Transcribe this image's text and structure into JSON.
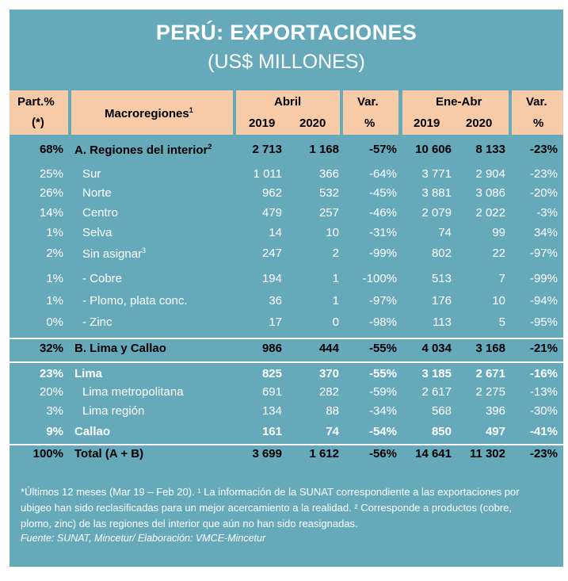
{
  "title": "PERÚ: EXPORTACIONES",
  "subtitle": "(US$ MILLONES)",
  "header": {
    "part_line1": "Part.%",
    "part_line2": "(*)",
    "macro": "Macroregiones",
    "macro_sup": "1",
    "abril": "Abril",
    "ene_abr": "Ene-Abr",
    "var": "Var.",
    "pct": "%",
    "y2019": "2019",
    "y2020": "2020"
  },
  "rows": [
    {
      "part": "68%",
      "name": "A. Regiones del interior",
      "sup": "2",
      "a2019": "2 713",
      "a2020": "1 168",
      "avar": "-57%",
      "e2019": "10 606",
      "e2020": "8 133",
      "evar": "-23%",
      "style": "bold-black"
    },
    {
      "part": "25%",
      "name": "Sur",
      "sup": "",
      "a2019": "1 011",
      "a2020": "366",
      "avar": "-64%",
      "e2019": "3 771",
      "e2020": "2 904",
      "evar": "-23%",
      "style": "white"
    },
    {
      "part": "26%",
      "name": "Norte",
      "sup": "",
      "a2019": "962",
      "a2020": "532",
      "avar": "-45%",
      "e2019": "3 881",
      "e2020": "3 086",
      "evar": "-20%",
      "style": "white"
    },
    {
      "part": "14%",
      "name": "Centro",
      "sup": "",
      "a2019": "479",
      "a2020": "257",
      "avar": "-46%",
      "e2019": "2 079",
      "e2020": "2 022",
      "evar": "-3%",
      "style": "white"
    },
    {
      "part": "1%",
      "name": "Selva",
      "sup": "",
      "a2019": "14",
      "a2020": "10",
      "avar": "-31%",
      "e2019": "74",
      "e2020": "99",
      "evar": "34%",
      "style": "white"
    },
    {
      "part": "2%",
      "name": "Sin asignar",
      "sup": "3",
      "a2019": "247",
      "a2020": "2",
      "avar": "-99%",
      "e2019": "802",
      "e2020": "22",
      "evar": "-97%",
      "style": "white"
    },
    {
      "part": "1%",
      "name": "- Cobre",
      "sup": "",
      "a2019": "194",
      "a2020": "1",
      "avar": "-100%",
      "e2019": "513",
      "e2020": "7",
      "evar": "-99%",
      "style": "white"
    },
    {
      "part": "1%",
      "name": "- Plomo, plata conc.",
      "sup": "",
      "a2019": "36",
      "a2020": "1",
      "avar": "-97%",
      "e2019": "176",
      "e2020": "10",
      "evar": "-94%",
      "style": "white"
    },
    {
      "part": "0%",
      "name": "- Zinc",
      "sup": "",
      "a2019": "17",
      "a2020": "0",
      "avar": "-98%",
      "e2019": "113",
      "e2020": "5",
      "evar": "-95%",
      "style": "white"
    },
    {
      "part": "32%",
      "name": "B. Lima y Callao",
      "sup": "",
      "a2019": "986",
      "a2020": "444",
      "avar": "-55%",
      "e2019": "4 034",
      "e2020": "3 168",
      "evar": "-21%",
      "style": "bold-black"
    },
    {
      "part": "23%",
      "name": "Lima",
      "sup": "",
      "a2019": "825",
      "a2020": "370",
      "avar": "-55%",
      "e2019": "3 185",
      "e2020": "2 671",
      "evar": "-16%",
      "style": "bold-white"
    },
    {
      "part": "20%",
      "name": "Lima metropolitana",
      "sup": "",
      "a2019": "691",
      "a2020": "282",
      "avar": "-59%",
      "e2019": "2 617",
      "e2020": "2 275",
      "evar": "-13%",
      "style": "white"
    },
    {
      "part": "3%",
      "name": "Lima región",
      "sup": "",
      "a2019": "134",
      "a2020": "88",
      "avar": "-34%",
      "e2019": "568",
      "e2020": "396",
      "evar": "-30%",
      "style": "white"
    },
    {
      "part": "9%",
      "name": "Callao",
      "sup": "",
      "a2019": "161",
      "a2020": "74",
      "avar": "-54%",
      "e2019": "850",
      "e2020": "497",
      "evar": "-41%",
      "style": "bold-white"
    },
    {
      "part": "100%",
      "name": "Total (A + B)",
      "sup": "",
      "a2019": "3 699",
      "a2020": "1 612",
      "avar": "-56%",
      "e2019": "14 641",
      "e2020": "11 302",
      "evar": "-23%",
      "style": "bold-black"
    }
  ],
  "footnote_line1": "*Últimos 12 meses (Mar 19 – Feb 20).  ¹ La información de la SUNAT correspondiente a las exportaciones por",
  "footnote_line2": "ubigeo han sido reclasificadas para un mejor acercamiento a la realidad. ² Corresponde a productos (cobre,",
  "footnote_line3": "plomo, zinc) de las regiones del interior que aún no han sido reasignadas.",
  "source": "Fuente: SUNAT, Mincetur/ Elaboración: VMCE-Mincetur",
  "colors": {
    "panel": "#66a9bb",
    "header": "#f7caa8",
    "text_light": "#ffffff",
    "text_dark": "#000000"
  }
}
